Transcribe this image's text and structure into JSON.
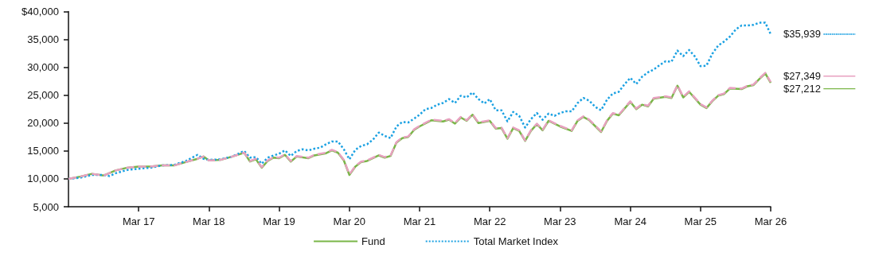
{
  "chart_data": {
    "type": "line",
    "xlim": [
      "2016-03",
      "2026-03"
    ],
    "xticks": [
      {
        "value": "2017-03",
        "label": "Mar 17"
      },
      {
        "value": "2018-03",
        "label": "Mar 18"
      },
      {
        "value": "2019-03",
        "label": "Mar 19"
      },
      {
        "value": "2020-03",
        "label": "Mar 20"
      },
      {
        "value": "2021-03",
        "label": "Mar 21"
      },
      {
        "value": "2022-03",
        "label": "Mar 22"
      },
      {
        "value": "2023-03",
        "label": "Mar 23"
      },
      {
        "value": "2024-03",
        "label": "Mar 24"
      },
      {
        "value": "2025-03",
        "label": "Mar 25"
      },
      {
        "value": "2026-03",
        "label": "Mar 26"
      }
    ],
    "ylim": [
      5000,
      40000
    ],
    "yticks": [
      {
        "value": 5000,
        "label": "5,000"
      },
      {
        "value": 10000,
        "label": "10,000"
      },
      {
        "value": 15000,
        "label": "15,000"
      },
      {
        "value": 20000,
        "label": "20,000"
      },
      {
        "value": 25000,
        "label": "25,000"
      },
      {
        "value": 30000,
        "label": "30,000"
      },
      {
        "value": 35000,
        "label": "35,000"
      },
      {
        "value": 40000,
        "label": "$40,000"
      }
    ],
    "grid": false,
    "legend": "bottom",
    "marker": "none",
    "series": [
      {
        "name": "Fund",
        "color": "#7ab648",
        "line_style": "solid",
        "x": [
          "2016-03",
          "2016-05",
          "2016-07",
          "2016-09",
          "2016-11",
          "2017-01",
          "2017-03",
          "2017-05",
          "2017-07",
          "2017-09",
          "2017-11",
          "2018-01",
          "2018-02",
          "2018-03",
          "2018-05",
          "2018-07",
          "2018-09",
          "2018-10",
          "2018-11",
          "2018-12",
          "2019-01",
          "2019-02",
          "2019-03",
          "2019-04",
          "2019-05",
          "2019-06",
          "2019-08",
          "2019-09",
          "2019-11",
          "2019-12",
          "2020-01",
          "2020-02",
          "2020-03",
          "2020-04",
          "2020-05",
          "2020-06",
          "2020-08",
          "2020-09",
          "2020-10",
          "2020-11",
          "2020-12",
          "2021-01",
          "2021-02",
          "2021-03",
          "2021-05",
          "2021-07",
          "2021-08",
          "2021-09",
          "2021-10",
          "2021-11",
          "2021-12",
          "2022-01",
          "2022-03",
          "2022-04",
          "2022-05",
          "2022-06",
          "2022-07",
          "2022-08",
          "2022-09",
          "2022-10",
          "2022-11",
          "2022-12",
          "2023-01",
          "2023-03",
          "2023-05",
          "2023-06",
          "2023-07",
          "2023-08",
          "2023-10",
          "2023-11",
          "2023-12",
          "2024-01",
          "2024-03",
          "2024-04",
          "2024-05",
          "2024-06",
          "2024-07",
          "2024-09",
          "2024-10",
          "2024-11",
          "2024-12",
          "2025-01",
          "2025-03",
          "2025-04",
          "2025-05",
          "2025-06",
          "2025-07",
          "2025-08",
          "2025-10",
          "2025-11",
          "2025-12",
          "2026-01",
          "2026-02",
          "2026-03"
        ],
        "values": [
          10000,
          10400,
          10900,
          10600,
          11500,
          12000,
          12200,
          12200,
          12400,
          12400,
          13000,
          13600,
          14000,
          13300,
          13400,
          14000,
          14700,
          13100,
          13500,
          12000,
          13200,
          13800,
          13700,
          14300,
          13100,
          14000,
          13700,
          14200,
          14600,
          15100,
          14700,
          13300,
          10700,
          12200,
          13000,
          13200,
          14200,
          13800,
          14100,
          16500,
          17300,
          17500,
          18800,
          19400,
          20500,
          20300,
          20600,
          19900,
          21000,
          20400,
          21500,
          20000,
          20400,
          19000,
          19100,
          17200,
          19100,
          18600,
          16800,
          18600,
          19800,
          18700,
          20400,
          19400,
          18600,
          20400,
          21100,
          20500,
          18400,
          20400,
          21700,
          21400,
          23800,
          22500,
          23300,
          23000,
          24400,
          24700,
          24500,
          26700,
          24600,
          25600,
          23300,
          22700,
          23900,
          24900,
          25200,
          26200,
          26100,
          26600,
          26800,
          27900,
          28900,
          27212
        ],
        "value_labels": [
          null,
          null,
          null,
          null,
          null,
          null,
          null,
          null,
          null,
          null,
          null,
          null,
          null,
          null,
          null,
          null,
          null,
          null,
          null,
          null,
          null,
          null,
          null,
          null,
          null,
          null,
          null,
          null,
          null,
          null,
          null,
          null,
          null,
          null,
          null,
          null,
          null,
          null,
          null,
          null,
          null,
          null,
          null,
          null,
          null,
          null,
          null,
          null,
          null,
          null,
          null,
          null,
          null,
          null,
          null,
          null,
          null,
          null,
          null,
          null,
          null,
          null,
          null,
          null,
          null,
          null,
          null,
          null,
          null,
          null,
          null,
          null,
          null,
          null,
          null,
          null,
          null,
          null,
          null,
          null,
          null,
          null,
          null,
          null,
          null,
          null,
          null,
          null,
          null,
          null,
          null,
          null,
          null,
          "$27,212"
        ]
      },
      {
        "name": "Total Market Index",
        "color": "#1ba1e2",
        "line_style": "dotted",
        "x": [
          "2016-03",
          "2016-05",
          "2016-07",
          "2016-09",
          "2016-10",
          "2016-11",
          "2017-01",
          "2017-03",
          "2017-05",
          "2017-07",
          "2017-09",
          "2017-11",
          "2018-01",
          "2018-02",
          "2018-03",
          "2018-05",
          "2018-07",
          "2018-09",
          "2018-10",
          "2018-11",
          "2018-12",
          "2019-01",
          "2019-02",
          "2019-03",
          "2019-04",
          "2019-05",
          "2019-06",
          "2019-07",
          "2019-08",
          "2019-09",
          "2019-10",
          "2019-11",
          "2019-12",
          "2020-01",
          "2020-02",
          "2020-03",
          "2020-04",
          "2020-05",
          "2020-06",
          "2020-07",
          "2020-08",
          "2020-09",
          "2020-10",
          "2020-11",
          "2020-12",
          "2021-01",
          "2021-02",
          "2021-03",
          "2021-04",
          "2021-05",
          "2021-06",
          "2021-07",
          "2021-08",
          "2021-09",
          "2021-10",
          "2021-11",
          "2021-12",
          "2022-01",
          "2022-02",
          "2022-03",
          "2022-04",
          "2022-05",
          "2022-06",
          "2022-07",
          "2022-08",
          "2022-09",
          "2022-10",
          "2022-11",
          "2022-12",
          "2023-01",
          "2023-02",
          "2023-03",
          "2023-04",
          "2023-05",
          "2023-06",
          "2023-07",
          "2023-08",
          "2023-09",
          "2023-10",
          "2023-11",
          "2023-12",
          "2024-01",
          "2024-02",
          "2024-03",
          "2024-04",
          "2024-05",
          "2024-06",
          "2024-07",
          "2024-08",
          "2024-09",
          "2024-10",
          "2024-11",
          "2024-12",
          "2025-01",
          "2025-02",
          "2025-03",
          "2025-04",
          "2025-05",
          "2025-06",
          "2025-07",
          "2025-08",
          "2025-09",
          "2025-10",
          "2025-11",
          "2025-12",
          "2026-01",
          "2026-02",
          "2026-03"
        ],
        "values": [
          10000,
          10200,
          10700,
          10700,
          10500,
          11000,
          11600,
          11800,
          12000,
          12400,
          12500,
          13200,
          14300,
          13600,
          13400,
          13500,
          14000,
          15000,
          13800,
          13900,
          12700,
          13800,
          14200,
          14500,
          15100,
          14100,
          15000,
          15300,
          15100,
          15400,
          15600,
          16200,
          16700,
          16700,
          15300,
          13500,
          15200,
          15900,
          16200,
          17000,
          18300,
          17700,
          17300,
          19400,
          20200,
          20100,
          20800,
          21500,
          22500,
          22700,
          23300,
          23600,
          24300,
          23600,
          24900,
          24600,
          25500,
          24300,
          23500,
          24300,
          22300,
          22300,
          20300,
          22000,
          21300,
          19200,
          20700,
          21800,
          20600,
          21700,
          21300,
          21800,
          22100,
          22100,
          23600,
          24500,
          24000,
          22900,
          22300,
          24200,
          25300,
          25600,
          27000,
          28100,
          27000,
          28300,
          29100,
          29600,
          30400,
          31100,
          31000,
          33000,
          32000,
          33100,
          31900,
          30200,
          30300,
          32400,
          33900,
          34600,
          35500,
          36800,
          37500,
          37500,
          37600,
          38000,
          38000,
          35939
        ],
        "value_labels": [
          null,
          null,
          null,
          null,
          null,
          null,
          null,
          null,
          null,
          null,
          null,
          null,
          null,
          null,
          null,
          null,
          null,
          null,
          null,
          null,
          null,
          null,
          null,
          null,
          null,
          null,
          null,
          null,
          null,
          null,
          null,
          null,
          null,
          null,
          null,
          null,
          null,
          null,
          null,
          null,
          null,
          null,
          null,
          null,
          null,
          null,
          null,
          null,
          null,
          null,
          null,
          null,
          null,
          null,
          null,
          null,
          null,
          null,
          null,
          null,
          null,
          null,
          null,
          null,
          null,
          null,
          null,
          null,
          null,
          null,
          null,
          null,
          null,
          null,
          null,
          null,
          null,
          null,
          null,
          null,
          null,
          null,
          null,
          null,
          null,
          null,
          null,
          null,
          null,
          null,
          null,
          null,
          null,
          null,
          null,
          null,
          null,
          null,
          null,
          null,
          null,
          null,
          null,
          null,
          null,
          null,
          null,
          "$35,939"
        ]
      },
      {
        "color": "#e8a0c0",
        "line_style": "dashed",
        "x": [
          "2016-03",
          "2016-05",
          "2016-07",
          "2016-09",
          "2016-11",
          "2017-01",
          "2017-03",
          "2017-05",
          "2017-07",
          "2017-09",
          "2017-11",
          "2018-01",
          "2018-02",
          "2018-03",
          "2018-05",
          "2018-07",
          "2018-09",
          "2018-10",
          "2018-11",
          "2018-12",
          "2019-01",
          "2019-02",
          "2019-03",
          "2019-04",
          "2019-05",
          "2019-06",
          "2019-08",
          "2019-09",
          "2019-11",
          "2019-12",
          "2020-01",
          "2020-02",
          "2020-03",
          "2020-04",
          "2020-05",
          "2020-06",
          "2020-08",
          "2020-09",
          "2020-10",
          "2020-11",
          "2020-12",
          "2021-01",
          "2021-02",
          "2021-03",
          "2021-05",
          "2021-07",
          "2021-08",
          "2021-09",
          "2021-10",
          "2021-11",
          "2021-12",
          "2022-01",
          "2022-03",
          "2022-04",
          "2022-05",
          "2022-06",
          "2022-07",
          "2022-08",
          "2022-09",
          "2022-10",
          "2022-11",
          "2022-12",
          "2023-01",
          "2023-03",
          "2023-05",
          "2023-06",
          "2023-07",
          "2023-08",
          "2023-10",
          "2023-11",
          "2023-12",
          "2024-01",
          "2024-03",
          "2024-04",
          "2024-05",
          "2024-06",
          "2024-07",
          "2024-09",
          "2024-10",
          "2024-11",
          "2024-12",
          "2025-01",
          "2025-03",
          "2025-04",
          "2025-05",
          "2025-06",
          "2025-07",
          "2025-08",
          "2025-10",
          "2025-11",
          "2025-12",
          "2026-01",
          "2026-02",
          "2026-03"
        ],
        "values": [
          10000,
          10400,
          10900,
          10600,
          11500,
          12000,
          12200,
          12200,
          12400,
          12400,
          13000,
          13600,
          14000,
          13300,
          13400,
          14000,
          14700,
          13200,
          13600,
          12100,
          13300,
          13900,
          13800,
          14400,
          13200,
          14100,
          13800,
          14300,
          14700,
          15200,
          14800,
          13400,
          10800,
          12300,
          13100,
          13300,
          14300,
          13900,
          14200,
          16600,
          17400,
          17600,
          18900,
          19500,
          20600,
          20400,
          20700,
          20000,
          21100,
          20500,
          21600,
          20100,
          20500,
          19100,
          19200,
          17300,
          19200,
          18700,
          16900,
          18700,
          19900,
          18800,
          20500,
          19500,
          18700,
          20500,
          21200,
          20600,
          18500,
          20500,
          21800,
          21500,
          23900,
          22600,
          23400,
          23100,
          24500,
          24800,
          24600,
          26800,
          24700,
          25700,
          23400,
          22800,
          24000,
          25000,
          25300,
          26300,
          26200,
          26700,
          26900,
          28000,
          29000,
          27349
        ],
        "value_labels": [
          null,
          null,
          null,
          null,
          null,
          null,
          null,
          null,
          null,
          null,
          null,
          null,
          null,
          null,
          null,
          null,
          null,
          null,
          null,
          null,
          null,
          null,
          null,
          null,
          null,
          null,
          null,
          null,
          null,
          null,
          null,
          null,
          null,
          null,
          null,
          null,
          null,
          null,
          null,
          null,
          null,
          null,
          null,
          null,
          null,
          null,
          null,
          null,
          null,
          null,
          null,
          null,
          null,
          null,
          null,
          null,
          null,
          null,
          null,
          null,
          null,
          null,
          null,
          null,
          null,
          null,
          null,
          null,
          null,
          null,
          null,
          null,
          null,
          null,
          null,
          null,
          null,
          null,
          null,
          null,
          null,
          null,
          null,
          null,
          null,
          null,
          null,
          null,
          null,
          null,
          null,
          null,
          null,
          "$27,349"
        ]
      }
    ]
  }
}
